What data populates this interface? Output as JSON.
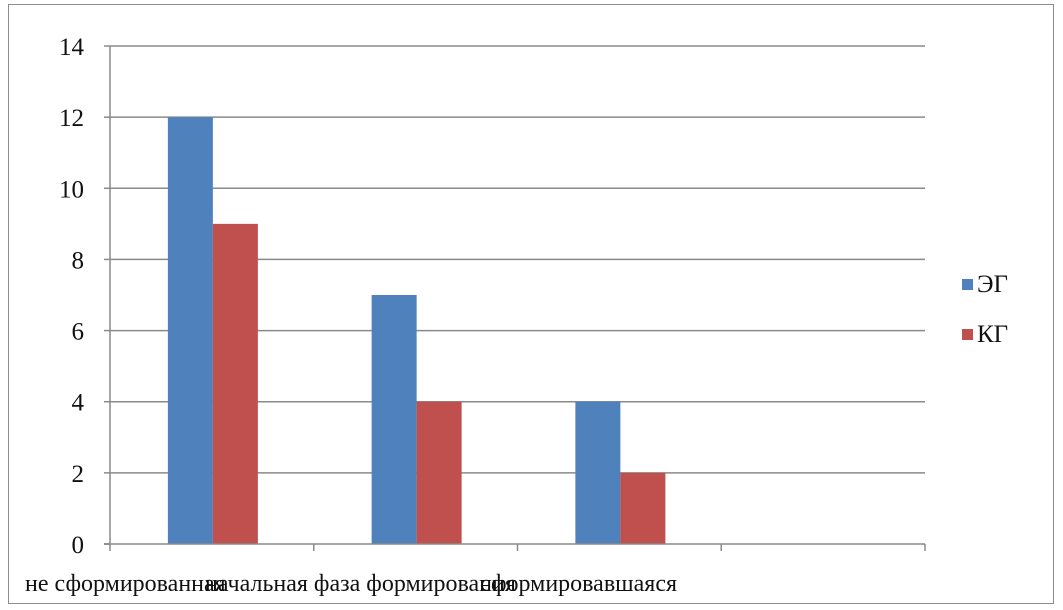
{
  "chart_data": {
    "type": "bar",
    "categories": [
      "не сформированная",
      "начальная фаза формирования",
      "сформировавшаяся"
    ],
    "series": [
      {
        "name": "ЭГ",
        "values": [
          12,
          7,
          4
        ],
        "color": "#4f81bd"
      },
      {
        "name": "КГ",
        "values": [
          9,
          4,
          2
        ],
        "color": "#c0504d"
      }
    ],
    "ylim": [
      0,
      14
    ],
    "yticks": [
      0,
      2,
      4,
      6,
      8,
      10,
      12,
      14
    ],
    "grid": true,
    "legend_position": "right"
  }
}
